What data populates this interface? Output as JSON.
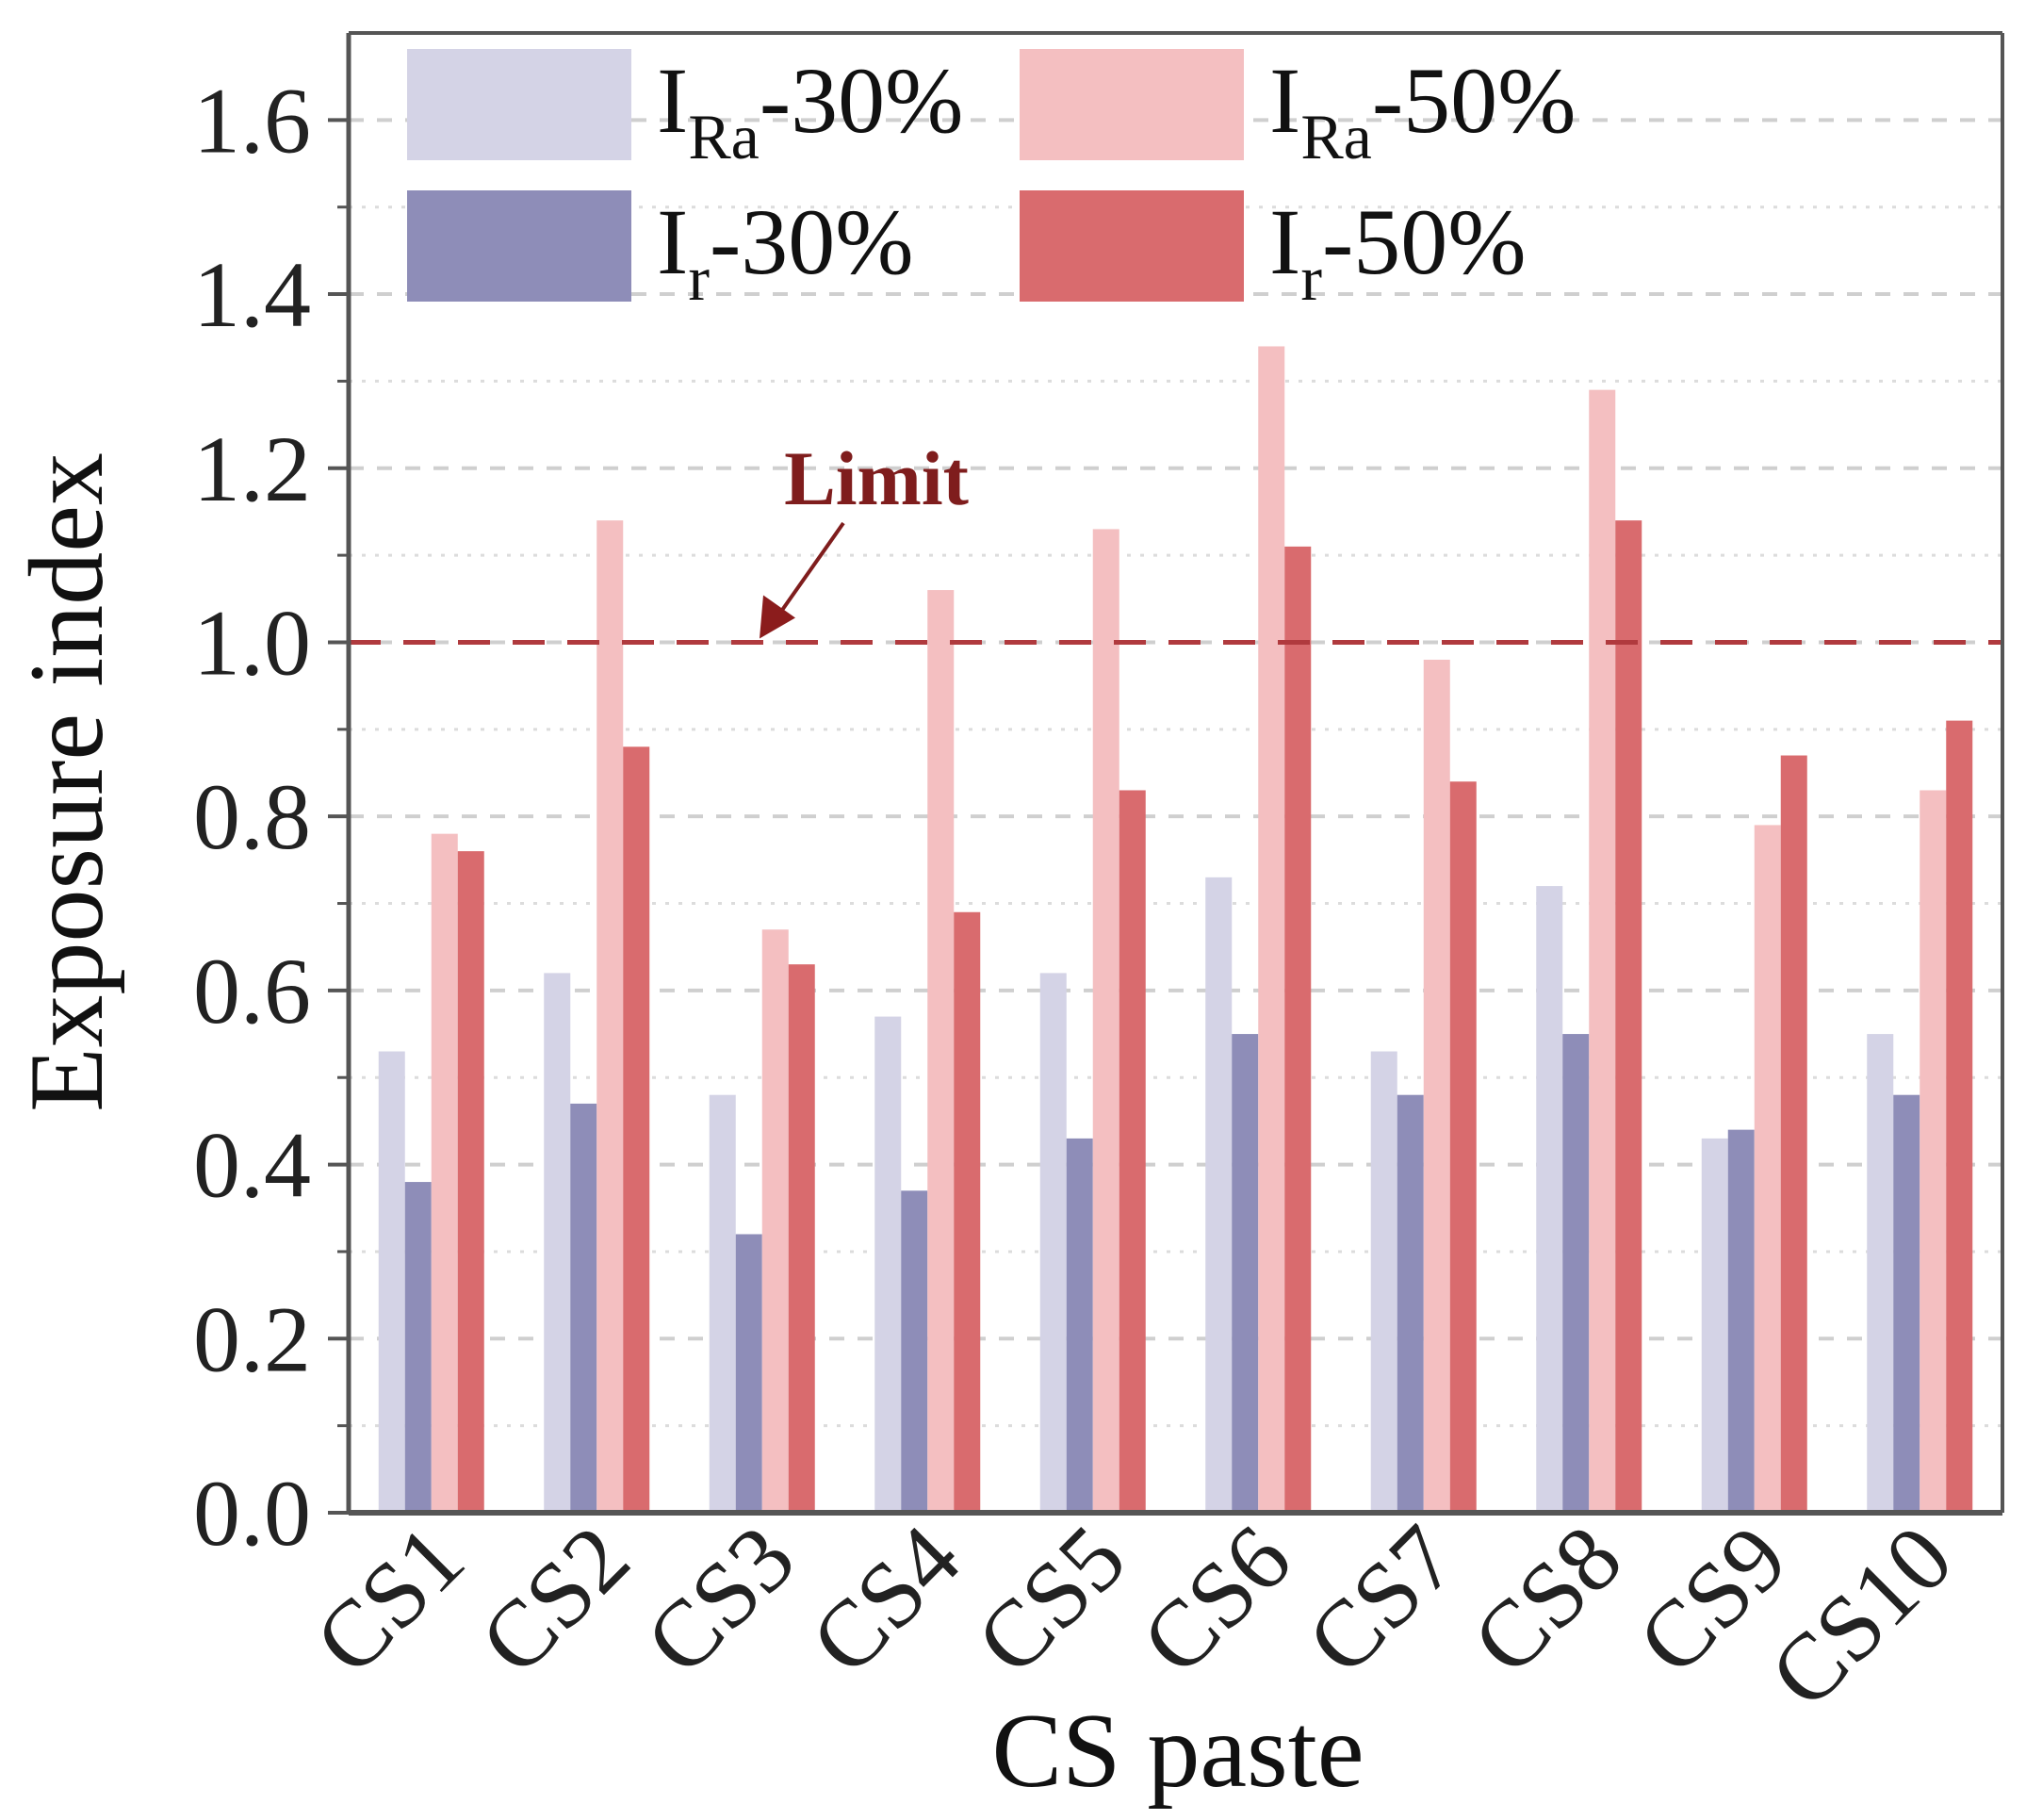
{
  "chart_data": {
    "type": "bar",
    "xlabel": "CS paste",
    "ylabel": "Exposure index",
    "ylim": [
      0,
      1.7
    ],
    "yticks": [
      "0.0",
      "0.2",
      "0.4",
      "0.6",
      "0.8",
      "1.0",
      "1.2",
      "1.4",
      "1.6"
    ],
    "categories": [
      "CS1",
      "CS2",
      "CS3",
      "CS4",
      "CS5",
      "CS6",
      "CS7",
      "CS8",
      "CS9",
      "CS10"
    ],
    "grid": true,
    "legend_position": "top",
    "limit": {
      "label": "Limit",
      "value": 1.0,
      "color": "#b03a3e"
    },
    "series": [
      {
        "name": "I_Ra-30%",
        "name_main": "I",
        "name_sub": "Ra",
        "name_rest": "-30%",
        "color": "#d4d3e6",
        "values": [
          0.53,
          0.62,
          0.48,
          0.57,
          0.62,
          0.73,
          0.53,
          0.72,
          0.43,
          0.55
        ]
      },
      {
        "name": "I_r-30%",
        "name_main": "I",
        "name_sub": "r",
        "name_rest": "-30%",
        "color": "#8e8db8",
        "values": [
          0.38,
          0.47,
          0.32,
          0.37,
          0.43,
          0.55,
          0.48,
          0.55,
          0.44,
          0.48
        ]
      },
      {
        "name": "I_Ra-50%",
        "name_main": "I",
        "name_sub": "Ra",
        "name_rest": "-50%",
        "color": "#f4bfc1",
        "values": [
          0.78,
          1.14,
          0.67,
          1.06,
          1.13,
          1.34,
          0.98,
          1.29,
          0.79,
          0.83
        ]
      },
      {
        "name": "I_r-50%",
        "name_main": "I",
        "name_sub": "r",
        "name_rest": "-50%",
        "color": "#d96b6e",
        "values": [
          0.76,
          0.88,
          0.63,
          0.69,
          0.83,
          1.11,
          0.84,
          1.14,
          0.87,
          0.91
        ]
      }
    ]
  }
}
